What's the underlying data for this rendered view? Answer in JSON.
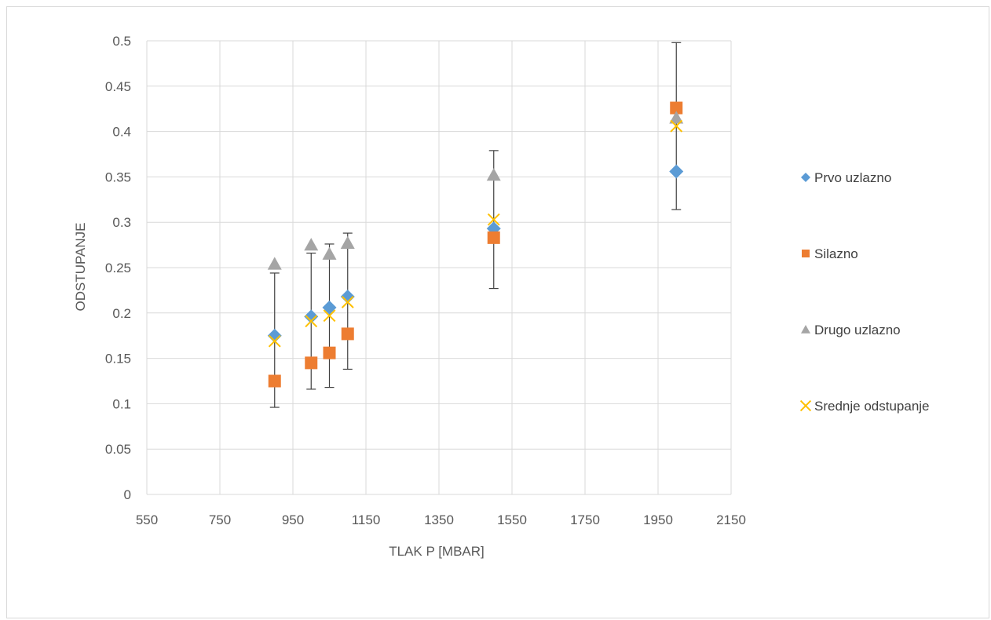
{
  "chart_data": {
    "type": "scatter",
    "title": "",
    "xlabel": "TLAK P [MBAR]",
    "ylabel": "ODSTUPANJE",
    "xlim": [
      550,
      2150
    ],
    "ylim": [
      0,
      0.5
    ],
    "x_ticks": [
      550,
      750,
      950,
      1150,
      1350,
      1550,
      1750,
      1950,
      2150
    ],
    "y_ticks": [
      0,
      0.05,
      0.1,
      0.15,
      0.2,
      0.25,
      0.3,
      0.35,
      0.4,
      0.45,
      0.5
    ],
    "grid": true,
    "legend_position": "right",
    "series": [
      {
        "name": "Prvo uzlazno",
        "marker": "diamond",
        "color": "#5B9BD5",
        "x": [
          900,
          1000,
          1050,
          1100,
          1500,
          2000
        ],
        "y": [
          0.175,
          0.196,
          0.206,
          0.218,
          0.293,
          0.356
        ]
      },
      {
        "name": "Silazno",
        "marker": "square",
        "color": "#ED7D31",
        "x": [
          900,
          1000,
          1050,
          1100,
          1500,
          2000
        ],
        "y": [
          0.125,
          0.145,
          0.156,
          0.177,
          0.283,
          0.426
        ]
      },
      {
        "name": "Drugo uzlazno",
        "marker": "triangle",
        "color": "#A5A5A5",
        "x": [
          900,
          1000,
          1050,
          1100,
          1500,
          2000
        ],
        "y": [
          0.254,
          0.275,
          0.265,
          0.277,
          0.352,
          0.415
        ]
      },
      {
        "name": "Srednje odstupanje",
        "marker": "x",
        "color": "#FFC000",
        "x": [
          900,
          1000,
          1050,
          1100,
          1500,
          2000
        ],
        "y": [
          0.169,
          0.191,
          0.197,
          0.212,
          0.303,
          0.406
        ],
        "error_low": [
          0.096,
          0.116,
          0.118,
          0.138,
          0.227,
          0.314
        ],
        "error_high": [
          0.244,
          0.266,
          0.276,
          0.288,
          0.379,
          0.498
        ]
      }
    ]
  }
}
